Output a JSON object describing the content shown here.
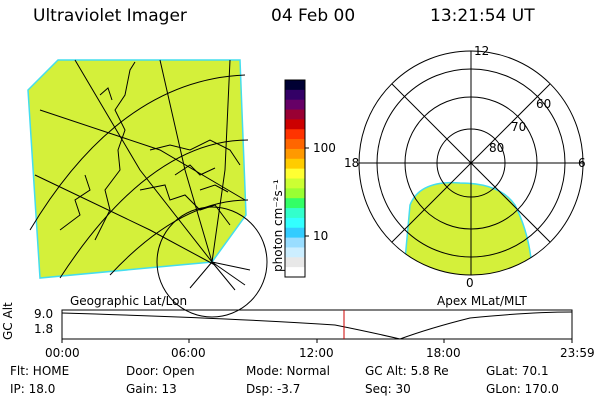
{
  "header": {
    "instrument": "Ultraviolet Imager",
    "date": "04 Feb 00",
    "time": "13:21:54 UT"
  },
  "colorbar": {
    "unit_label": "photon cm⁻²s⁻¹",
    "ticks": [
      "100",
      "10"
    ],
    "colors": [
      "#000033",
      "#330066",
      "#660066",
      "#990033",
      "#cc0000",
      "#ff3300",
      "#ff6600",
      "#ff9900",
      "#ffcc00",
      "#ffff33",
      "#ccff33",
      "#99ff33",
      "#33ff66",
      "#33ffcc",
      "#33ffff",
      "#33ccff",
      "#99ddff",
      "#cceeff",
      "#e8e8e8",
      "#ffffff"
    ]
  },
  "left_panel": {
    "caption": "Geographic Lat/Lon",
    "aurora_color": "#d4f03a"
  },
  "polar_panel": {
    "caption": "Apex MLat/MLT",
    "mlt_labels": {
      "top": "12",
      "left": "18",
      "right": "6",
      "bottom": "0"
    },
    "mlat_labels": [
      "60",
      "70",
      "80"
    ],
    "aurora_color": "#d4f03a"
  },
  "timeline": {
    "ylabel": "GC Alt",
    "y_ticks": [
      "9.0",
      "1.8"
    ],
    "x_ticks": [
      "00:00",
      "06:00",
      "12:00",
      "18:00",
      "23:59"
    ],
    "current_time_color": "#cc0000"
  },
  "status": {
    "row1": {
      "flt": "Flt: HOME",
      "door": "Door: Open",
      "mode": "Mode: Normal",
      "gcalt": "GC Alt: 5.8 Re",
      "glat": "GLat:  70.1"
    },
    "row2": {
      "ip": "IP: 18.0",
      "gain": "Gain: 13",
      "dsp": "Dsp:   -3.7",
      "seq": "Seq: 30",
      "glon": "GLon: 170.0"
    }
  }
}
